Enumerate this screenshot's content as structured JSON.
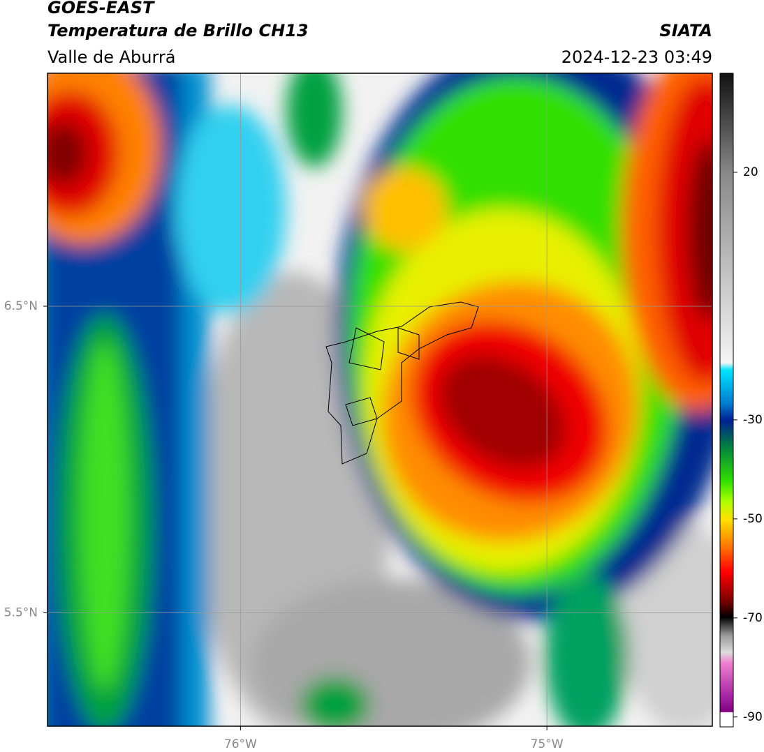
{
  "header": {
    "title": "GOES-EAST",
    "subtitle": "Temperatura de Brillo CH13",
    "region": "Valle de Aburrá",
    "source": "SIATA",
    "timestamp": "2024-12-23 03:49"
  },
  "map": {
    "xlim": [
      -76.63,
      -74.46
    ],
    "ylim": [
      5.13,
      7.26
    ],
    "xticks": [
      {
        "value": -76,
        "label": "76°W"
      },
      {
        "value": -75,
        "label": "75°W"
      }
    ],
    "yticks": [
      {
        "value": 6.5,
        "label": "6.5°N"
      },
      {
        "value": 5.5,
        "label": "5.5°N"
      }
    ],
    "grid": true
  },
  "colorbar": {
    "lim": [
      -92,
      40
    ],
    "ticks": [
      20,
      -30,
      -50,
      -70,
      -90
    ]
  }
}
